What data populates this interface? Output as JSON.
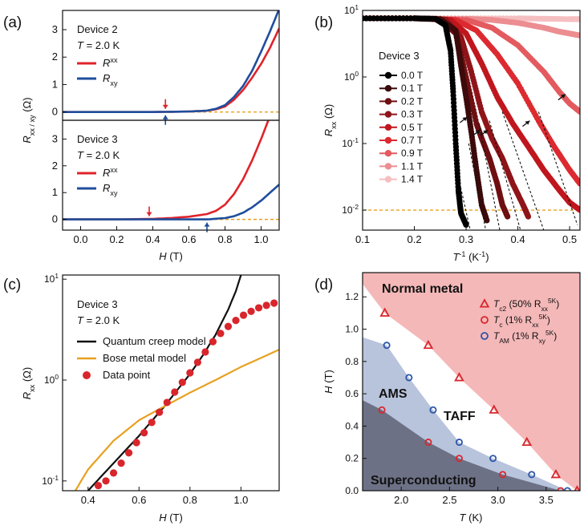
{
  "chart_data": [
    {
      "panel": "(a)",
      "type": "line",
      "xlabel": "H (T)",
      "ylabel": "R_xx/xy (Ω)",
      "xlim": [
        -0.1,
        1.1
      ],
      "xticks": [
        0.0,
        0.2,
        0.4,
        0.6,
        0.8,
        1.0
      ],
      "xtick_labels": [
        "0.0",
        "0.2",
        "0.4",
        "0.6",
        "0.8",
        "1.0"
      ],
      "subplots": [
        {
          "device": "Device 2",
          "temperature": "T = 2.0 K",
          "ylim": [
            -0.3,
            3.7
          ],
          "yticks": [
            0,
            1,
            2,
            3
          ],
          "ytick_labels": [
            "0",
            "1",
            "2",
            "3"
          ],
          "reference_line_y": 0,
          "series": [
            {
              "name": "Rxx",
              "color": "#e0232b",
              "x": [
                -0.1,
                0.0,
                0.2,
                0.4,
                0.6,
                0.7,
                0.75,
                0.8,
                0.85,
                0.9,
                0.95,
                1.0,
                1.05,
                1.1
              ],
              "y": [
                0.0,
                0.0,
                0.0,
                0.0,
                0.02,
                0.05,
                0.1,
                0.2,
                0.45,
                0.8,
                1.25,
                1.75,
                2.35,
                3.05
              ]
            },
            {
              "name": "Rxy",
              "color": "#1f4e9c",
              "x": [
                -0.1,
                0.0,
                0.2,
                0.4,
                0.6,
                0.7,
                0.75,
                0.8,
                0.85,
                0.9,
                0.95,
                1.0,
                1.05,
                1.1
              ],
              "y": [
                0.0,
                0.0,
                0.0,
                0.0,
                0.02,
                0.05,
                0.12,
                0.25,
                0.55,
                0.95,
                1.5,
                2.2,
                2.95,
                3.75
              ]
            }
          ],
          "arrows": [
            {
              "x": 0.47,
              "color": "#e0232b",
              "from": "above"
            },
            {
              "x": 0.47,
              "color": "#1f4e9c",
              "from": "below"
            }
          ]
        },
        {
          "device": "Device 3",
          "temperature": "T = 2.0 K",
          "ylim": [
            -0.4,
            3.7
          ],
          "yticks": [
            0,
            1,
            2,
            3
          ],
          "ytick_labels": [
            "0",
            "1",
            "2",
            "3"
          ],
          "reference_line_y": 0,
          "series": [
            {
              "name": "Rxx",
              "color": "#e0232b",
              "x": [
                -0.1,
                0.0,
                0.2,
                0.4,
                0.5,
                0.6,
                0.7,
                0.75,
                0.8,
                0.85,
                0.9,
                0.95,
                1.0,
                1.04
              ],
              "y": [
                0.0,
                0.0,
                0.0,
                0.02,
                0.05,
                0.1,
                0.2,
                0.32,
                0.55,
                0.95,
                1.5,
                2.2,
                3.0,
                3.7
              ]
            },
            {
              "name": "Rxy",
              "color": "#1f4e9c",
              "x": [
                -0.1,
                0.0,
                0.2,
                0.4,
                0.6,
                0.7,
                0.8,
                0.85,
                0.9,
                0.95,
                1.0,
                1.05,
                1.1
              ],
              "y": [
                0.0,
                0.0,
                0.0,
                0.0,
                0.0,
                0.0,
                0.05,
                0.12,
                0.25,
                0.45,
                0.7,
                1.0,
                1.3
              ]
            }
          ],
          "arrows": [
            {
              "x": 0.38,
              "color": "#e0232b",
              "from": "above"
            },
            {
              "x": 0.7,
              "color": "#1f4e9c",
              "from": "below"
            }
          ]
        }
      ]
    },
    {
      "panel": "(b)",
      "type": "scatter",
      "device": "Device 3",
      "xlabel": "T⁻¹ (K⁻¹)",
      "ylabel": "R_xx (Ω)",
      "yscale": "log",
      "xlim": [
        0.1,
        0.52
      ],
      "ylim": [
        0.005,
        10
      ],
      "xticks": [
        0.1,
        0.2,
        0.3,
        0.4,
        0.5
      ],
      "xtick_labels": [
        "0.1",
        "0.2",
        "0.3",
        "0.4",
        "0.5"
      ],
      "yticks": [
        0.01,
        0.1,
        1,
        10
      ],
      "ytick_labels": [
        "10⁻²",
        "10⁻¹",
        "10⁰",
        "10¹"
      ],
      "threshold_y": 0.01,
      "series": [
        {
          "name": "0.0 T",
          "color": "#000000",
          "x": [
            0.1,
            0.2,
            0.24,
            0.26,
            0.27,
            0.275,
            0.28,
            0.285,
            0.29,
            0.3
          ],
          "y": [
            7.6,
            7.6,
            7.5,
            6.0,
            2.5,
            0.6,
            0.1,
            0.02,
            0.009,
            0.006
          ]
        },
        {
          "name": "0.1 T",
          "color": "#3c0a0a",
          "x": [
            0.1,
            0.2,
            0.25,
            0.28,
            0.29,
            0.3,
            0.31,
            0.32,
            0.33,
            0.34
          ],
          "y": [
            7.6,
            7.6,
            7.4,
            5.0,
            1.5,
            0.5,
            0.15,
            0.04,
            0.012,
            0.007
          ]
        },
        {
          "name": "0.2 T",
          "color": "#6e0f12",
          "x": [
            0.1,
            0.2,
            0.25,
            0.28,
            0.3,
            0.32,
            0.33,
            0.345,
            0.36,
            0.37,
            0.38
          ],
          "y": [
            7.6,
            7.6,
            7.4,
            4.5,
            1.0,
            0.2,
            0.12,
            0.06,
            0.025,
            0.012,
            0.008
          ]
        },
        {
          "name": "0.3 T",
          "color": "#8f1419",
          "x": [
            0.1,
            0.2,
            0.26,
            0.29,
            0.31,
            0.33,
            0.35,
            0.37,
            0.39,
            0.41,
            0.42
          ],
          "y": [
            7.6,
            7.6,
            7.3,
            4.0,
            1.2,
            0.3,
            0.12,
            0.06,
            0.025,
            0.012,
            0.008
          ]
        },
        {
          "name": "0.5 T",
          "color": "#c0161d",
          "x": [
            0.1,
            0.2,
            0.27,
            0.3,
            0.33,
            0.36,
            0.39,
            0.42,
            0.45,
            0.48,
            0.5,
            0.52
          ],
          "y": [
            7.6,
            7.6,
            7.2,
            4.5,
            1.6,
            0.5,
            0.2,
            0.09,
            0.04,
            0.02,
            0.013,
            0.01
          ]
        },
        {
          "name": "0.7 T",
          "color": "#dc2a30",
          "x": [
            0.1,
            0.2,
            0.28,
            0.32,
            0.36,
            0.4,
            0.44,
            0.47,
            0.5,
            0.52
          ],
          "y": [
            7.6,
            7.6,
            7.2,
            5.0,
            2.2,
            0.8,
            0.22,
            0.09,
            0.04,
            0.025
          ]
        },
        {
          "name": "0.9 T",
          "color": "#e35a5f",
          "x": [
            0.1,
            0.2,
            0.3,
            0.35,
            0.4,
            0.45,
            0.48,
            0.5,
            0.52
          ],
          "y": [
            7.6,
            7.6,
            7.2,
            5.5,
            3.0,
            1.2,
            0.6,
            0.4,
            0.3
          ]
        },
        {
          "name": "1.1 T",
          "color": "#ec8e91",
          "x": [
            0.1,
            0.2,
            0.3,
            0.35,
            0.4,
            0.45,
            0.48,
            0.5,
            0.52
          ],
          "y": [
            7.6,
            7.6,
            7.5,
            7.2,
            6.5,
            5.5,
            4.8,
            4.5,
            4.2
          ]
        },
        {
          "name": "1.4 T",
          "color": "#f5bfc1",
          "x": [
            0.1,
            0.2,
            0.3,
            0.4,
            0.45,
            0.5,
            0.52
          ],
          "y": [
            7.6,
            7.6,
            7.6,
            7.6,
            7.5,
            7.4,
            7.4
          ]
        }
      ],
      "fit_lines": [
        {
          "x": [
            0.282,
            0.308
          ],
          "y": [
            0.04,
            0.005
          ]
        },
        {
          "x": [
            0.305,
            0.338
          ],
          "y": [
            0.1,
            0.005
          ]
        },
        {
          "x": [
            0.325,
            0.365
          ],
          "y": [
            0.2,
            0.005
          ]
        },
        {
          "x": [
            0.345,
            0.405
          ],
          "y": [
            0.22,
            0.005
          ]
        },
        {
          "x": [
            0.37,
            0.45
          ],
          "y": [
            0.3,
            0.005
          ]
        },
        {
          "x": [
            0.44,
            0.515
          ],
          "y": [
            0.3,
            0.006
          ]
        }
      ],
      "arrows": [
        {
          "x": 0.302,
          "y": 0.25
        },
        {
          "x": 0.327,
          "y": 0.16
        },
        {
          "x": 0.342,
          "y": 0.16
        },
        {
          "x": 0.423,
          "y": 0.22
        },
        {
          "x": 0.492,
          "y": 0.55
        }
      ]
    },
    {
      "panel": "(c)",
      "type": "line",
      "device": "Device 3",
      "temperature": "T = 2.0 K",
      "xlabel": "H (T)",
      "ylabel": "R_xx (Ω)",
      "yscale": "log",
      "xlim": [
        0.3,
        1.15
      ],
      "ylim": [
        0.08,
        11
      ],
      "xticks": [
        0.4,
        0.6,
        0.8,
        1.0
      ],
      "xtick_labels": [
        "0.4",
        "0.6",
        "0.8",
        "1.0"
      ],
      "yticks": [
        0.1,
        1,
        10
      ],
      "ytick_labels": [
        "10⁻¹",
        "10⁰",
        "10¹"
      ],
      "series": [
        {
          "name": "Quantum creep model",
          "color": "#111111",
          "x": [
            0.4,
            0.5,
            0.6,
            0.7,
            0.8,
            0.85,
            0.9,
            0.95,
            0.98,
            1.0
          ],
          "y": [
            0.08,
            0.15,
            0.28,
            0.55,
            1.15,
            1.75,
            2.8,
            5.0,
            7.6,
            11
          ]
        },
        {
          "name": "Bose metal model",
          "color": "#e8a020",
          "x": [
            0.35,
            0.4,
            0.5,
            0.6,
            0.7,
            0.8,
            0.9,
            1.0,
            1.15
          ],
          "y": [
            0.08,
            0.13,
            0.25,
            0.4,
            0.55,
            0.75,
            1.0,
            1.35,
            2.0
          ]
        },
        {
          "name": "Data point",
          "color": "#d8262c",
          "marker": "circle",
          "x": [
            0.44,
            0.47,
            0.5,
            0.53,
            0.56,
            0.59,
            0.62,
            0.65,
            0.68,
            0.71,
            0.74,
            0.77,
            0.8,
            0.83,
            0.86,
            0.89,
            0.92,
            0.95,
            0.98,
            1.01,
            1.04,
            1.07,
            1.1,
            1.13
          ],
          "y": [
            0.09,
            0.1,
            0.12,
            0.15,
            0.19,
            0.24,
            0.3,
            0.38,
            0.48,
            0.6,
            0.76,
            0.95,
            1.18,
            1.5,
            1.9,
            2.4,
            2.9,
            3.4,
            3.9,
            4.4,
            4.8,
            5.2,
            5.5,
            5.8
          ]
        }
      ]
    },
    {
      "panel": "(d)",
      "type": "scatter",
      "xlabel": "T (K)",
      "ylabel": "H (T)",
      "xlim": [
        1.6,
        3.85
      ],
      "ylim": [
        0,
        1.35
      ],
      "xticks": [
        2.0,
        2.5,
        3.0,
        3.5
      ],
      "xtick_labels": [
        "2.0",
        "2.5",
        "3.0",
        "3.5"
      ],
      "yticks": [
        0.0,
        0.2,
        0.4,
        0.6,
        0.8,
        1.0,
        1.2
      ],
      "ytick_labels": [
        "0.0",
        "0.2",
        "0.4",
        "0.6",
        "0.8",
        "1.0",
        "1.2"
      ],
      "regions": [
        {
          "label": "Normal metal",
          "color": "#f4b8b8"
        },
        {
          "label": "TAFF",
          "color": "#ffffff"
        },
        {
          "label": "AMS",
          "color": "#b8c3dc"
        },
        {
          "label": "Superconducting",
          "color": "#6d7185"
        }
      ],
      "series": [
        {
          "name": "Tc2 (50% Rxx5K)",
          "label_main": "T",
          "label_sub": "c2",
          "label_rest": " (50% R",
          "label_sub2": "xx",
          "label_sup": "5K",
          "label_end": ")",
          "color": "#d8262c",
          "marker": "triangle",
          "x": [
            1.83,
            2.28,
            2.6,
            2.96,
            3.3,
            3.6,
            3.82
          ],
          "y": [
            1.1,
            0.9,
            0.7,
            0.5,
            0.3,
            0.1,
            0.0
          ]
        },
        {
          "name": "Tc (1% Rxx5K)",
          "label_main": "T",
          "label_sub": "c",
          "label_rest": " (1% R",
          "label_sub2": "xx",
          "label_sup": "5K",
          "label_end": ")",
          "color": "#d8262c",
          "marker": "circle",
          "x": [
            1.8,
            2.28,
            2.6,
            3.05,
            3.65
          ],
          "y": [
            0.5,
            0.3,
            0.2,
            0.1,
            0.0
          ]
        },
        {
          "name": "TAM (1% Rxy5K)",
          "label_main": "T",
          "label_sub": "AM",
          "label_rest": " (1% R",
          "label_sub2": "xy",
          "label_sup": "5K",
          "label_end": ")",
          "color": "#2b55a8",
          "marker": "circle",
          "x": [
            1.85,
            2.08,
            2.33,
            2.6,
            2.95,
            3.35,
            3.72
          ],
          "y": [
            0.9,
            0.7,
            0.5,
            0.3,
            0.2,
            0.1,
            0.0
          ]
        }
      ]
    }
  ]
}
